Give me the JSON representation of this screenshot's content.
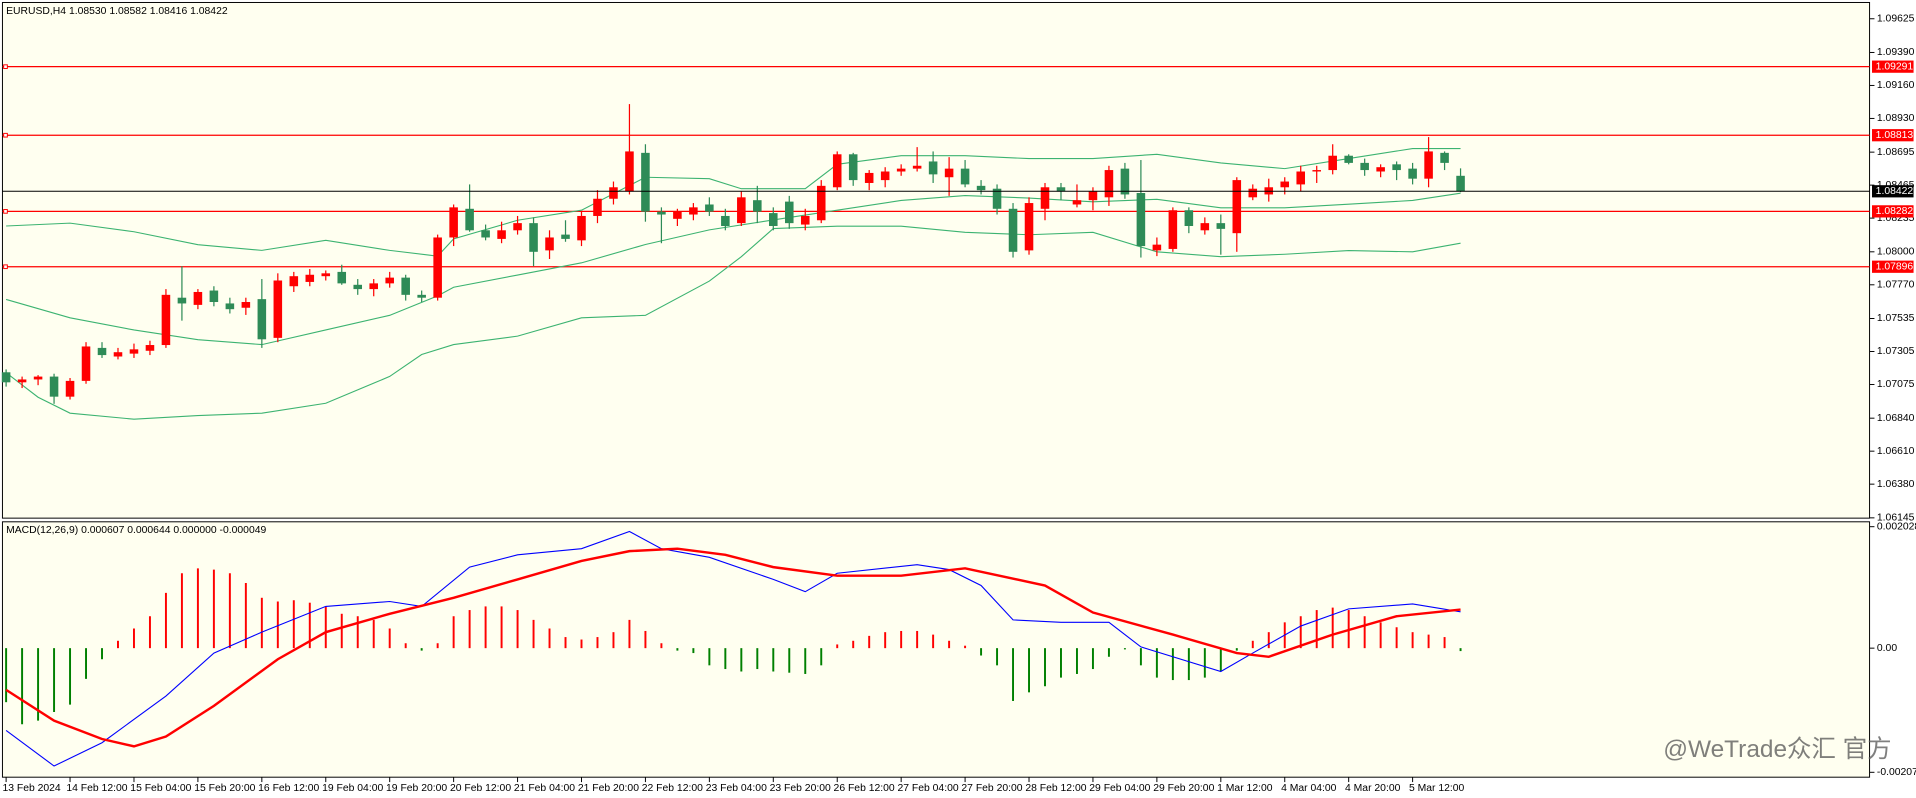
{
  "chart_data": {
    "type": "candlestick",
    "title": "EURUSD,H4 1.08530 1.08582 1.08416 1.08422",
    "categories": [
      "13 Feb 2024",
      null,
      null,
      null,
      "14 Feb 12:00",
      null,
      null,
      null,
      "15 Feb 04:00",
      null,
      null,
      null,
      "15 Feb 20:00",
      null,
      null,
      null,
      "16 Feb 12:00",
      null,
      null,
      null,
      "19 Feb 04:00",
      null,
      null,
      null,
      "19 Feb 20:00",
      null,
      null,
      null,
      "20 Feb 12:00",
      null,
      null,
      null,
      "21 Feb 04:00",
      null,
      null,
      null,
      "21 Feb 20:00",
      null,
      null,
      null,
      "22 Feb 12:00",
      null,
      null,
      null,
      "23 Feb 04:00",
      null,
      null,
      null,
      "23 Feb 20:00",
      null,
      null,
      null,
      "26 Feb 12:00",
      null,
      null,
      null,
      "27 Feb 04:00",
      null,
      null,
      null,
      "27 Feb 20:00",
      null,
      null,
      null,
      "28 Feb 12:00",
      null,
      null,
      null,
      "29 Feb 04:00",
      null,
      null,
      null,
      "29 Feb 20:00",
      null,
      null,
      null,
      "1 Mar 12:00",
      null,
      null,
      null,
      "4 Mar 04:00",
      null,
      null,
      null,
      "4 Mar 20:00",
      null,
      null,
      null,
      "5 Mar 12:00",
      null,
      null,
      null
    ],
    "candles": {
      "open": [
        1.0716,
        1.0709,
        1.0711,
        1.0713,
        1.0699,
        1.071,
        1.0733,
        1.0727,
        1.0729,
        1.0731,
        1.0735,
        1.0768,
        1.0763,
        1.0773,
        1.0764,
        1.0761,
        1.0767,
        1.074,
        1.0776,
        1.0779,
        1.0783,
        1.0786,
        1.0777,
        1.0774,
        1.0778,
        1.0782,
        1.077,
        1.0768,
        1.081,
        1.083,
        1.0815,
        1.0809,
        1.0815,
        1.082,
        1.0801,
        1.0812,
        1.0808,
        1.0825,
        1.0837,
        1.0842,
        1.0869,
        1.0828,
        1.0823,
        1.0826,
        1.0833,
        1.0825,
        1.082,
        1.0836,
        1.0827,
        1.0835,
        1.0819,
        1.0822,
        1.0845,
        1.0868,
        1.0848,
        1.085,
        1.0856,
        1.0858,
        1.0863,
        1.0852,
        1.0858,
        1.0846,
        1.0844,
        1.083,
        1.0801,
        1.083,
        1.0845,
        1.0833,
        1.0836,
        1.0838,
        1.0858,
        1.0841,
        1.0801,
        1.0802,
        1.0829,
        1.0815,
        1.082,
        1.0813,
        1.0838,
        1.084,
        1.0845,
        1.0847,
        1.0856,
        1.0857,
        1.0867,
        1.0862,
        1.0856,
        1.0861,
        1.0858,
        1.0851,
        1.0869,
        1.0853
      ],
      "high": [
        1.0718,
        1.0713,
        1.0714,
        1.0715,
        1.0712,
        1.0737,
        1.0737,
        1.0733,
        1.0736,
        1.0738,
        1.0774,
        1.079,
        1.0774,
        1.0776,
        1.0768,
        1.0768,
        1.0781,
        1.0785,
        1.0786,
        1.0788,
        1.0787,
        1.0791,
        1.0781,
        1.0781,
        1.0786,
        1.0784,
        1.0773,
        1.0812,
        1.0833,
        1.0847,
        1.0819,
        1.0821,
        1.0825,
        1.0824,
        1.0815,
        1.0822,
        1.0828,
        1.0843,
        1.0849,
        1.0903,
        1.0875,
        1.0831,
        1.083,
        1.0834,
        1.0838,
        1.083,
        1.0842,
        1.0846,
        1.0831,
        1.0839,
        1.083,
        1.085,
        1.087,
        1.0869,
        1.0857,
        1.0859,
        1.0861,
        1.0873,
        1.087,
        1.0866,
        1.0864,
        1.085,
        1.0847,
        1.0834,
        1.0838,
        1.0848,
        1.0848,
        1.0847,
        1.0845,
        1.086,
        1.0862,
        1.0864,
        1.081,
        1.0831,
        1.0831,
        1.0824,
        1.0826,
        1.0852,
        1.0847,
        1.0851,
        1.0852,
        1.086,
        1.086,
        1.0875,
        1.0868,
        1.0865,
        1.0861,
        1.0863,
        1.0862,
        1.088,
        1.087,
        1.08582
      ],
      "low": [
        1.0706,
        1.0705,
        1.0707,
        1.0694,
        1.0697,
        1.0708,
        1.0726,
        1.0725,
        1.0726,
        1.0728,
        1.0733,
        1.0752,
        1.076,
        1.0762,
        1.0757,
        1.0756,
        1.0733,
        1.0737,
        1.0772,
        1.0776,
        1.078,
        1.0777,
        1.077,
        1.0769,
        1.0775,
        1.0766,
        1.0765,
        1.0766,
        1.0804,
        1.0814,
        1.0808,
        1.0806,
        1.0812,
        1.079,
        1.0795,
        1.0807,
        1.0804,
        1.082,
        1.0833,
        1.084,
        1.0821,
        1.0806,
        1.0818,
        1.0822,
        1.0825,
        1.0815,
        1.0818,
        1.082,
        1.0815,
        1.0816,
        1.0815,
        1.082,
        1.0843,
        1.0846,
        1.0843,
        1.0845,
        1.0853,
        1.0856,
        1.0848,
        1.0839,
        1.0845,
        1.084,
        1.0826,
        1.0796,
        1.0798,
        1.0822,
        1.0836,
        1.0831,
        1.0829,
        1.0832,
        1.0837,
        1.0796,
        1.0797,
        1.08,
        1.0813,
        1.0812,
        1.0798,
        1.08,
        1.0836,
        1.0835,
        1.084,
        1.0842,
        1.0848,
        1.0854,
        1.0861,
        1.0853,
        1.0852,
        1.085,
        1.0847,
        1.0845,
        1.0857,
        1.08416
      ],
      "close": [
        1.0709,
        1.0711,
        1.0713,
        1.0699,
        1.071,
        1.0734,
        1.0728,
        1.073,
        1.0732,
        1.0735,
        1.077,
        1.0764,
        1.0772,
        1.0765,
        1.076,
        1.0765,
        1.0739,
        1.078,
        1.0783,
        1.0784,
        1.0785,
        1.0778,
        1.0774,
        1.0778,
        1.0782,
        1.077,
        1.0768,
        1.081,
        1.0831,
        1.0815,
        1.081,
        1.0815,
        1.082,
        1.08,
        1.081,
        1.0809,
        1.0825,
        1.0837,
        1.0845,
        1.087,
        1.0828,
        1.0826,
        1.0828,
        1.0831,
        1.0828,
        1.0818,
        1.0838,
        1.0828,
        1.0818,
        1.082,
        1.0825,
        1.0846,
        1.0868,
        1.085,
        1.0855,
        1.0856,
        1.0858,
        1.086,
        1.0854,
        1.0858,
        1.0847,
        1.0843,
        1.083,
        1.08,
        1.0834,
        1.0845,
        1.0842,
        1.0836,
        1.0842,
        1.0857,
        1.084,
        1.0804,
        1.0805,
        1.0829,
        1.0818,
        1.082,
        1.0816,
        1.085,
        1.0844,
        1.0845,
        1.0849,
        1.0856,
        1.0857,
        1.0867,
        1.0862,
        1.0857,
        1.0859,
        1.0857,
        1.0851,
        1.087,
        1.0862,
        1.08422
      ]
    },
    "up_color": "#ff0000",
    "down_color": "#2e8b57",
    "ylim": [
      1.06143,
      1.0973
    ],
    "yticks": [
      1.09625,
      {
        "value": 1.0939,
        "label": "1.09390"
      },
      {
        "value": 1.0916,
        "label": "1.09160"
      },
      {
        "value": 1.0893,
        "label": "1.08930"
      },
      1.08695,
      1.08465,
      1.08235,
      {
        "value": 1.08,
        "label": "1.08000"
      },
      {
        "value": 1.0777,
        "label": "1.07770"
      },
      1.07535,
      1.07305,
      1.07075,
      {
        "value": 1.0684,
        "label": "1.06840"
      },
      {
        "value": 1.0661,
        "label": "1.06610"
      },
      {
        "value": 1.0638,
        "label": "1.06380"
      },
      1.06145
    ],
    "levels": [
      1.09291,
      1.08813,
      1.08282,
      1.07896
    ],
    "level_color": "#ff0000",
    "bands": [
      {
        "color": "#3cb371",
        "x": [
          0,
          4,
          8,
          12,
          16,
          20,
          24,
          27,
          28,
          32,
          36,
          40,
          44,
          46,
          50,
          52,
          56,
          60,
          64,
          68,
          72,
          76,
          80,
          84,
          88,
          91
        ],
        "values": [
          1.0818,
          1.082,
          1.0814,
          1.0805,
          1.0801,
          1.0808,
          1.0801,
          1.0797,
          1.0809,
          1.0822,
          1.0829,
          1.0852,
          1.0851,
          1.0844,
          1.0844,
          1.0861,
          1.0867,
          1.0867,
          1.0865,
          1.0865,
          1.0868,
          1.0862,
          1.0858,
          1.0865,
          1.0872,
          1.0872
        ]
      },
      {
        "color": "#3cb371",
        "x": [
          0,
          4,
          8,
          12,
          16,
          20,
          24,
          27,
          28,
          32,
          36,
          40,
          44,
          48,
          52,
          56,
          60,
          64,
          68,
          72,
          76,
          80,
          84,
          88,
          91
        ],
        "values": [
          1.07668,
          1.0754,
          1.07455,
          1.07387,
          1.07353,
          1.07455,
          1.07557,
          1.07693,
          1.07753,
          1.07838,
          1.07923,
          1.08051,
          1.08153,
          1.08222,
          1.0829,
          1.08358,
          1.08392,
          1.08375,
          1.08349,
          1.08366,
          1.08307,
          1.08307,
          1.08332,
          1.08358,
          1.08409
        ]
      },
      {
        "color": "#3cb371",
        "x": [
          0,
          2,
          4,
          8,
          12,
          16,
          20,
          24,
          26,
          28,
          32,
          36,
          40,
          44,
          46,
          48,
          52,
          56,
          60,
          64,
          68,
          72,
          76,
          80,
          84,
          88,
          91
        ],
        "values": [
          1.07157,
          1.06986,
          1.06875,
          1.06833,
          1.06858,
          1.06875,
          1.06944,
          1.07131,
          1.07284,
          1.07353,
          1.07412,
          1.0754,
          1.07557,
          1.07796,
          1.07966,
          1.08162,
          1.08179,
          1.08179,
          1.08136,
          1.08119,
          1.08136,
          1.08,
          1.07966,
          1.07983,
          1.08009,
          1.08,
          1.0806
        ]
      }
    ],
    "indicator": {
      "type": "macd",
      "title": "MACD(12,26,9) 0.000607 0.000644 0.000000 -0.000049",
      "ylim": [
        -0.002073,
        0.002028
      ],
      "yticks": [
        0.002028,
        {
          "value": 0,
          "label": "0.00"
        },
        -0.002073
      ],
      "positive_color": "#ff0000",
      "negative_color": "#008000",
      "histogram": [
        -0.000902,
        -0.001271,
        -0.00121,
        -0.001066,
        -0.000943,
        -0.000513,
        -0.000185,
        0.000123,
        0.000328,
        0.000533,
        0.000923,
        0.001251,
        0.001333,
        0.001312,
        0.001251,
        0.001087,
        0.000841,
        0.000779,
        0.0008,
        0.000759,
        0.000697,
        0.000574,
        0.000533,
        0.000472,
        0.000328,
        8.2e-05,
        -4.1e-05,
        8.2e-05,
        0.000533,
        0.000636,
        0.000697,
        0.000697,
        0.000636,
        0.000472,
        0.000328,
        0.000185,
        0.000144,
        0.000185,
        0.000267,
        0.000472,
        0.000287,
        8.2e-05,
        -4.1e-05,
        -8.2e-05,
        -0.000287,
        -0.000349,
        -0.00039,
        -0.000349,
        -0.00039,
        -0.00041,
        -0.000431,
        -0.000287,
        6.2e-05,
        0.000123,
        0.000205,
        0.000267,
        0.000287,
        0.000287,
        0.000226,
        0.000123,
        4.1e-05,
        -0.000123,
        -0.000287,
        -0.000882,
        -0.000738,
        -0.000636,
        -0.000492,
        -0.000431,
        -0.000349,
        -0.000144,
        -2.1e-05,
        -0.000287,
        -0.000492,
        -0.000533,
        -0.000533,
        -0.000492,
        -0.00039,
        -4.1e-05,
        0.000123,
        0.000267,
        0.000431,
        0.000533,
        0.000636,
        0.000677,
        0.000636,
        0.000533,
        0.000431,
        0.000349,
        0.000267,
        0.000226,
        0.000185,
        -4.9e-05
      ],
      "series": [
        {
          "color": "#0000ff",
          "x": [
            0,
            3,
            6,
            10,
            13,
            16,
            20,
            24,
            26,
            29,
            32,
            36,
            39,
            41,
            44,
            48,
            50,
            52,
            57,
            59,
            61,
            63,
            66,
            69,
            71,
            76,
            78,
            81,
            84,
            88,
            91
          ],
          "values": [
            -0.001374,
            -0.001968,
            -0.001579,
            -0.0008,
            -8.2e-05,
            0.000267,
            0.000697,
            0.000779,
            0.000697,
            0.001353,
            0.001558,
            0.001661,
            0.001948,
            0.001661,
            0.001517,
            0.001148,
            0.000943,
            0.001251,
            0.001394,
            0.001312,
            0.001046,
            0.000472,
            0.000431,
            0.000431,
            2.1e-05,
            -0.00039,
            -8.2e-05,
            0.000369,
            0.000656,
            0.000738,
            0.000607
          ]
        },
        {
          "color": "#ff0000",
          "x": [
            0,
            3,
            6,
            8,
            10,
            13,
            17,
            20,
            24,
            28,
            32,
            36,
            39,
            42,
            45,
            48,
            52,
            56,
            60,
            65,
            68,
            73,
            77,
            79,
            83,
            87,
            91
          ],
          "values": [
            -0.000697,
            -0.00121,
            -0.001517,
            -0.00164,
            -0.001476,
            -0.000964,
            -0.000185,
            0.000267,
            0.000574,
            0.000841,
            0.001148,
            0.001456,
            0.00162,
            0.001661,
            0.001558,
            0.001353,
            0.00121,
            0.00121,
            0.001333,
            0.001046,
            0.000595,
            0.000226,
            -8.2e-05,
            -0.000144,
            0.000226,
            0.000533,
            0.000644
          ]
        }
      ]
    },
    "watermark": "@WeTrade众汇 官方"
  }
}
